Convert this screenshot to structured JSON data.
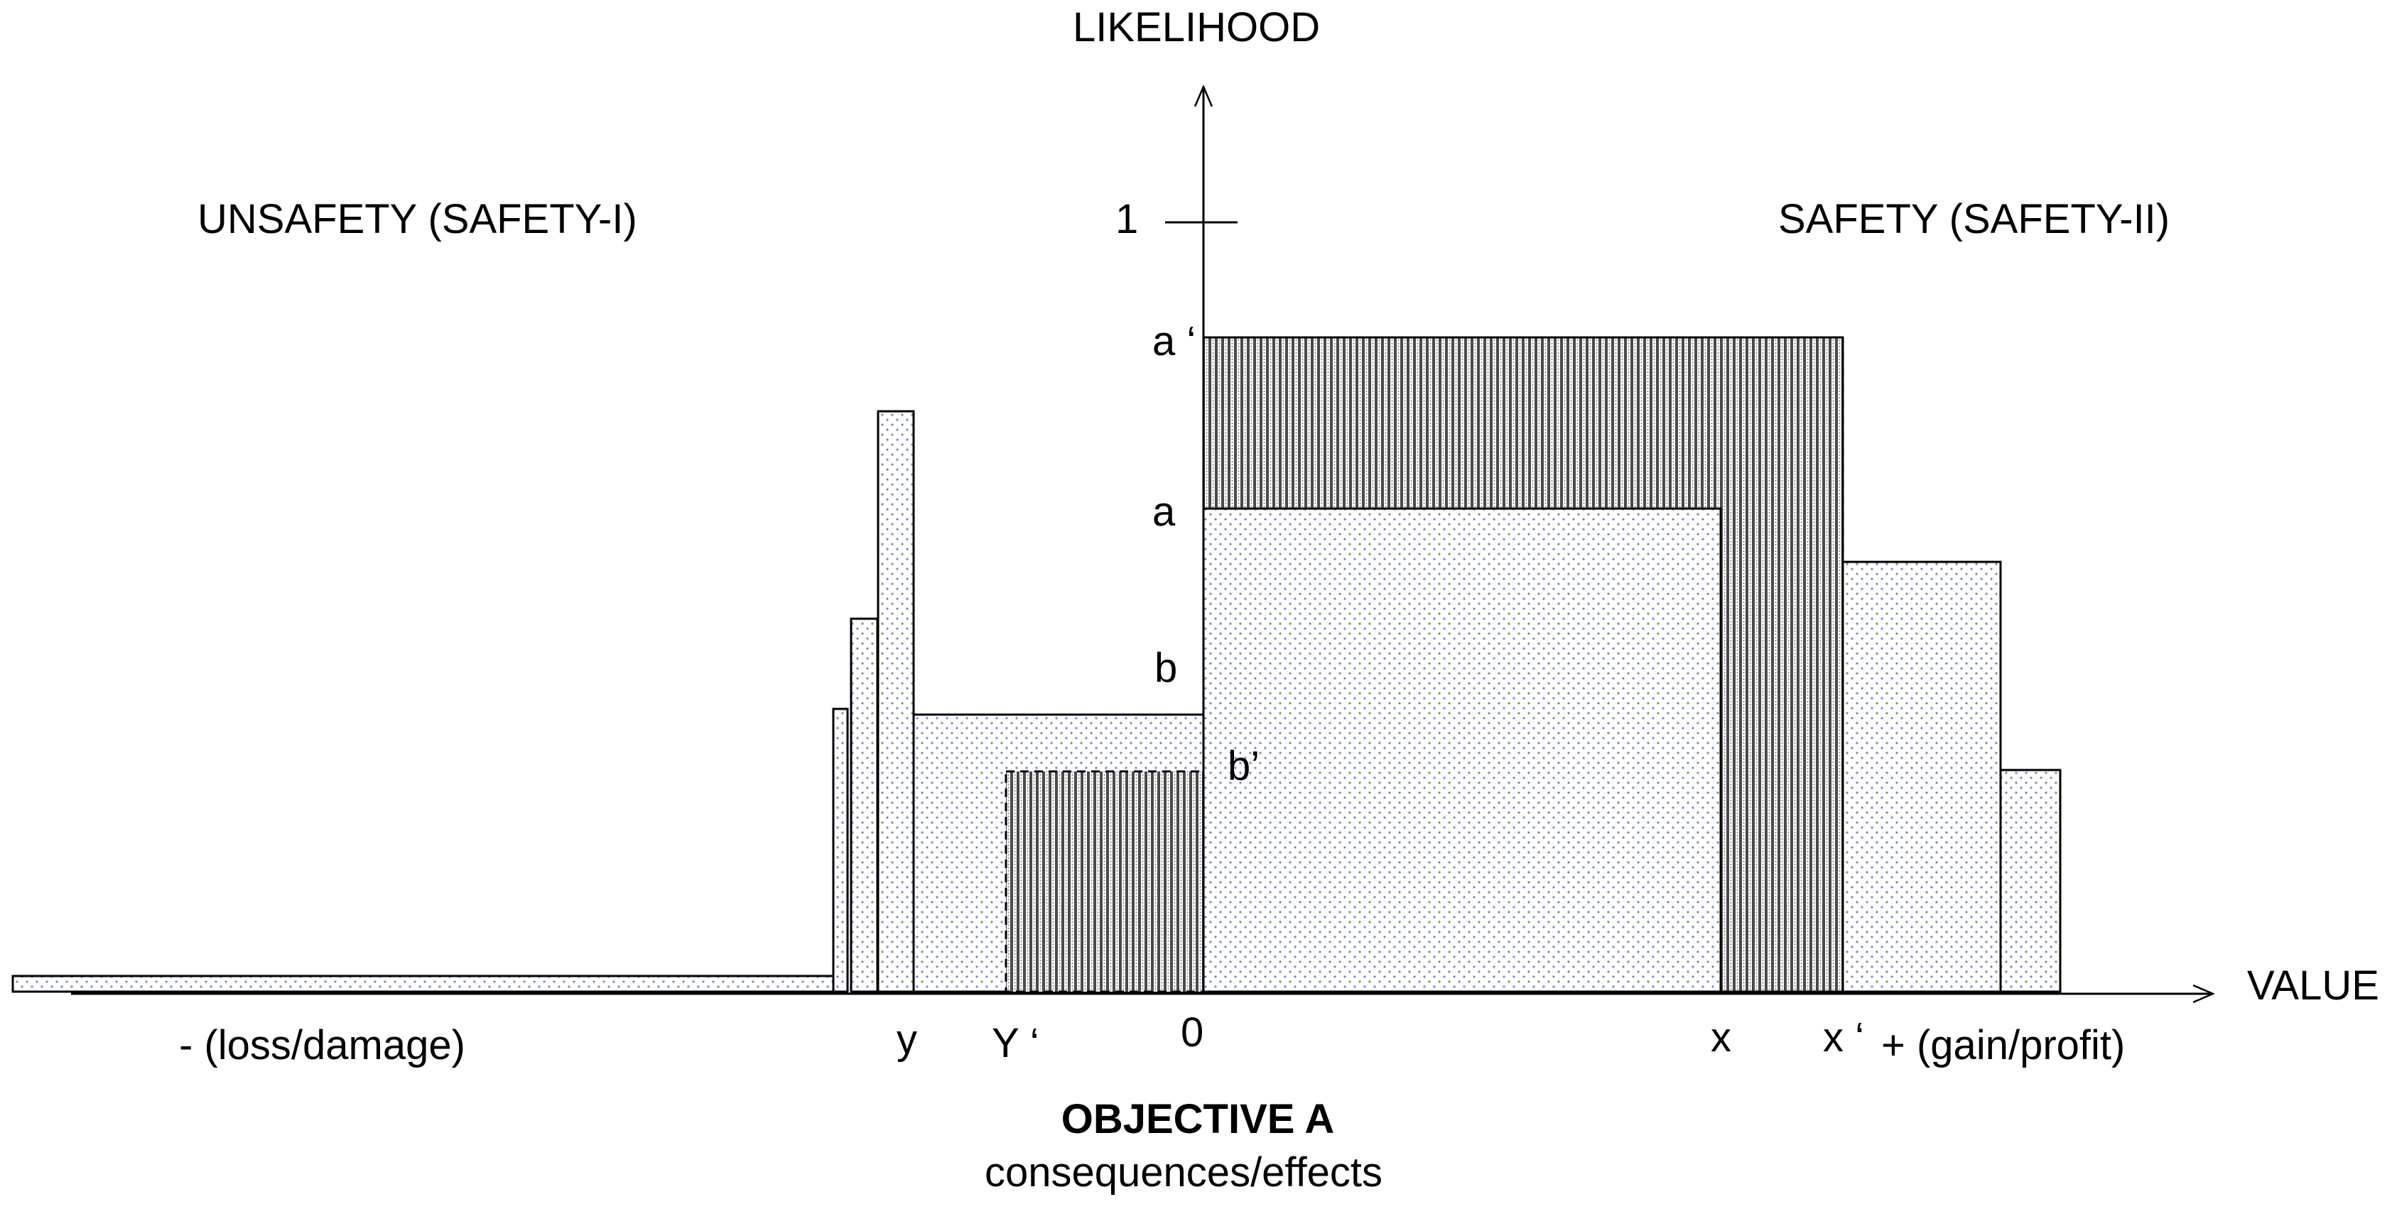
{
  "axes": {
    "y_label": "LIKELIHOOD",
    "x_label": "VALUE",
    "y_tick_one": "1",
    "origin": "0",
    "negative_side": "- (loss/damage)",
    "positive_side": "+ (gain/profit)"
  },
  "regions": {
    "left": "UNSAFETY (SAFETY-I)",
    "right": "SAFETY (SAFETY-II)"
  },
  "level_labels": {
    "a_prime": "a ‘",
    "a": "a",
    "b": "b",
    "b_prime": "b’"
  },
  "value_labels": {
    "y": "y",
    "y_prime": "Y ‘",
    "x": "x",
    "x_prime": "x ‘"
  },
  "objective": {
    "title": "OBJECTIVE A",
    "subtitle": "consequences/effects"
  },
  "colors": {
    "line": "#000000",
    "dot_fill": "#6a8fc8",
    "hatch_fill": "#555555",
    "background": "#ffffff"
  }
}
